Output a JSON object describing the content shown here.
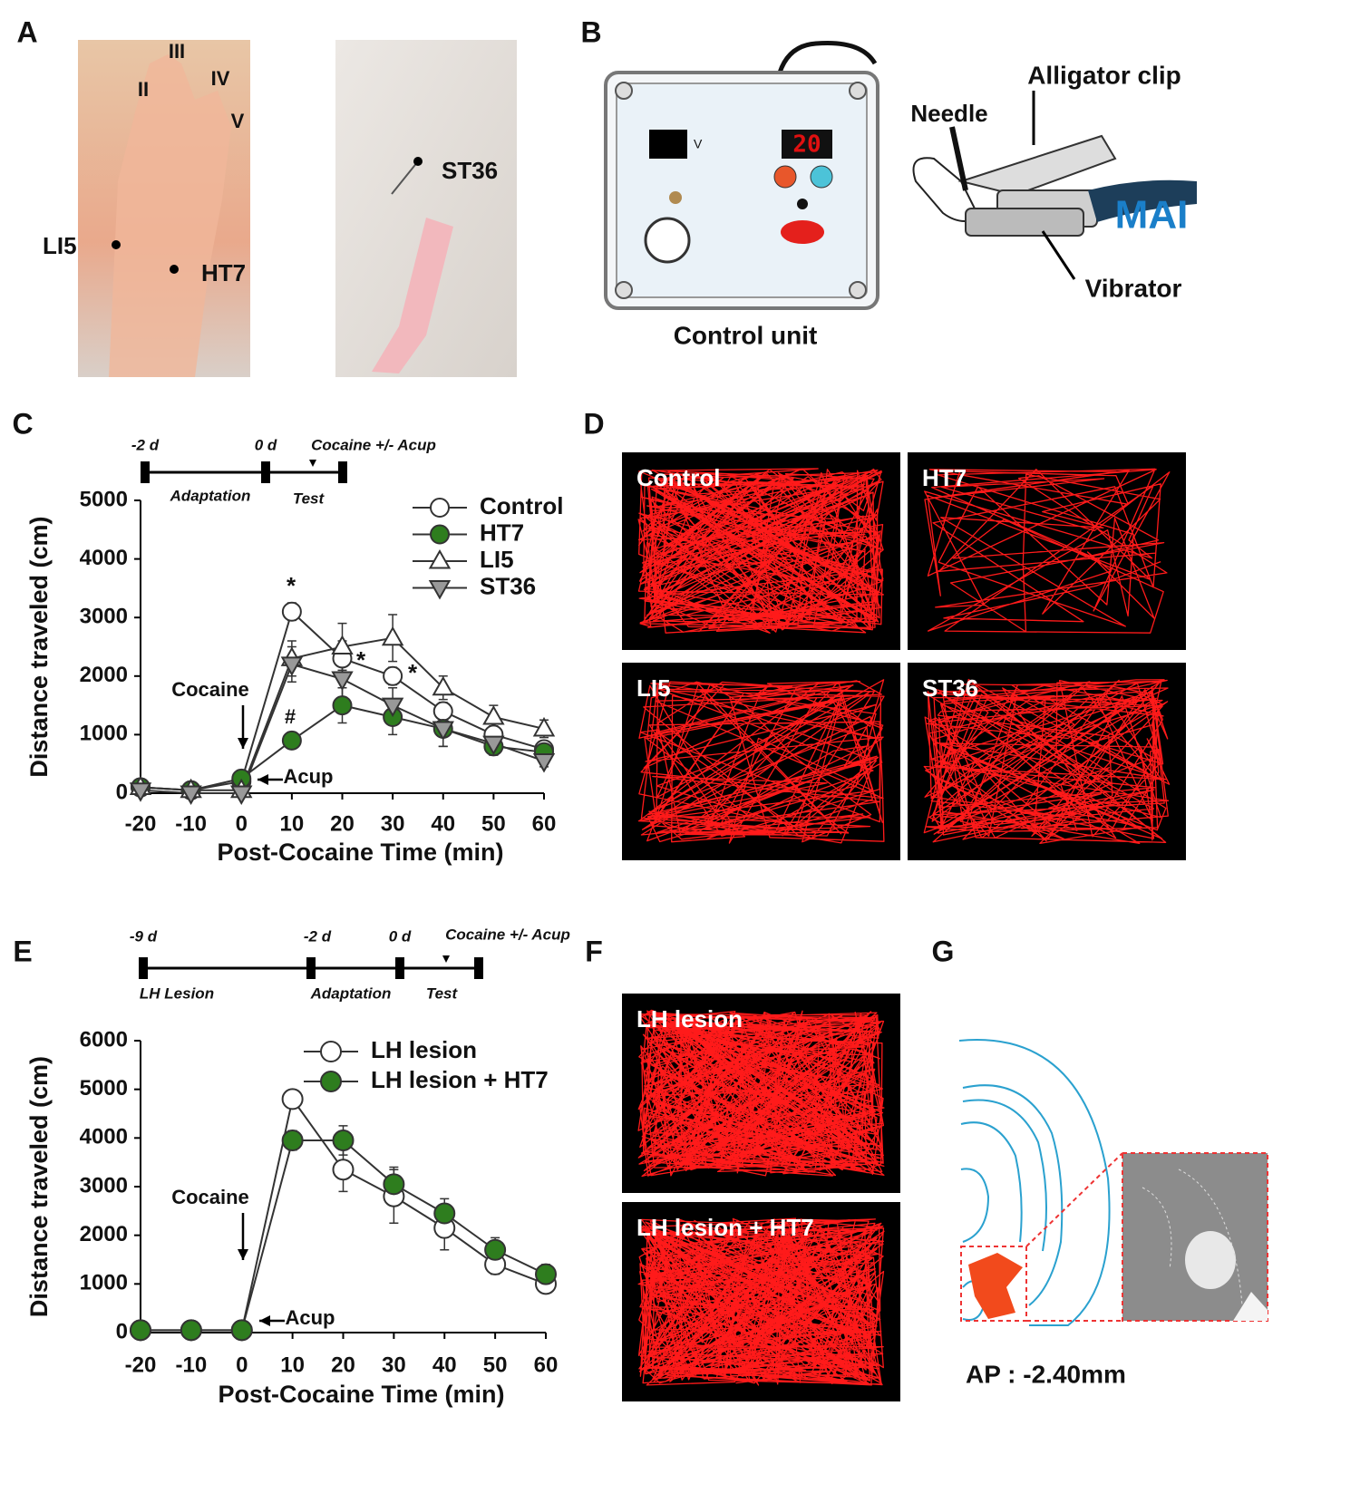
{
  "panel_labels": [
    "A",
    "B",
    "C",
    "D",
    "E",
    "F",
    "G"
  ],
  "panel_a": {
    "digit_labels": [
      "II",
      "III",
      "IV",
      "V"
    ],
    "points": [
      "LI5",
      "HT7",
      "ST36"
    ]
  },
  "panel_b": {
    "display_value": "20",
    "unit": "V",
    "labels": {
      "needle": "Needle",
      "clip": "Alligator clip",
      "device": "MAI",
      "vibrator": "Vibrator",
      "control_unit": "Control unit"
    }
  },
  "panel_d": {
    "tracks": [
      "Control",
      "HT7",
      "LI5",
      "ST36"
    ]
  },
  "panel_f": {
    "tracks": [
      "LH lesion",
      "LH lesion + HT7"
    ]
  },
  "panel_g": {
    "caption": "AP : -2.40mm"
  },
  "chart_data": [
    {
      "type": "line",
      "timeline": {
        "day_labels": [
          "-2 d",
          "0 d"
        ],
        "event_label": "Cocaine +/- Acup",
        "phase_labels": [
          "Adaptation",
          "Test"
        ]
      },
      "x": [
        -20,
        -10,
        0,
        10,
        20,
        30,
        40,
        50,
        60
      ],
      "xlim": [
        -20,
        60
      ],
      "xticks": [
        -20,
        -10,
        0,
        10,
        20,
        30,
        40,
        50,
        60
      ],
      "ylim": [
        0,
        5000
      ],
      "yticks": [
        0,
        1000,
        2000,
        3000,
        4000,
        5000
      ],
      "xlabel": "Post-Cocaine Time (min)",
      "ylabel": "Distance traveled (cm)",
      "annotations": [
        "*",
        "*",
        "*",
        "#",
        "Cocaine",
        "Acup"
      ],
      "series": [
        {
          "name": "Control",
          "marker": "circle",
          "color": "#ffffff",
          "values": [
            100,
            50,
            200,
            3100,
            2300,
            2000,
            1400,
            1000,
            750
          ],
          "errors": [
            50,
            50,
            50,
            150,
            300,
            150,
            150,
            150,
            100
          ]
        },
        {
          "name": "HT7",
          "marker": "circle",
          "color": "#2e7d1e",
          "values": [
            100,
            50,
            250,
            900,
            1500,
            1300,
            1100,
            800,
            700
          ],
          "errors": [
            50,
            50,
            50,
            100,
            300,
            300,
            300,
            150,
            150
          ]
        },
        {
          "name": "LI5",
          "marker": "triangle-up",
          "color": "#ffffff",
          "values": [
            100,
            50,
            50,
            2300,
            2500,
            2650,
            1800,
            1300,
            1100
          ],
          "errors": [
            50,
            50,
            50,
            300,
            400,
            400,
            200,
            200,
            150
          ]
        },
        {
          "name": "ST36",
          "marker": "triangle-down",
          "color": "#999999",
          "values": [
            50,
            0,
            0,
            2200,
            1950,
            1500,
            1100,
            850,
            550
          ],
          "errors": [
            50,
            30,
            30,
            300,
            350,
            300,
            300,
            200,
            100
          ]
        }
      ]
    },
    {
      "type": "line",
      "timeline": {
        "day_labels": [
          "-9 d",
          "-2 d",
          "0 d"
        ],
        "event_label": "Cocaine +/- Acup",
        "phase_labels": [
          "LH Lesion",
          "Adaptation",
          "Test"
        ]
      },
      "x": [
        -20,
        -10,
        0,
        10,
        20,
        30,
        40,
        50,
        60
      ],
      "xlim": [
        -20,
        60
      ],
      "xticks": [
        -20,
        -10,
        0,
        10,
        20,
        30,
        40,
        50,
        60
      ],
      "ylim": [
        0,
        6000
      ],
      "yticks": [
        0,
        1000,
        2000,
        3000,
        4000,
        5000,
        6000
      ],
      "xlabel": "Post-Cocaine Time (min)",
      "ylabel": "Distance traveled (cm)",
      "annotations": [
        "Cocaine",
        "Acup"
      ],
      "series": [
        {
          "name": "LH lesion",
          "marker": "circle",
          "color": "#ffffff",
          "values": [
            50,
            50,
            50,
            4800,
            3350,
            2800,
            2150,
            1400,
            1000
          ],
          "errors": [
            50,
            50,
            50,
            100,
            450,
            550,
            450,
            200,
            100
          ]
        },
        {
          "name": "LH lesion + HT7",
          "marker": "circle",
          "color": "#2e7d1e",
          "values": [
            50,
            50,
            50,
            3950,
            3950,
            3050,
            2450,
            1700,
            1200
          ],
          "errors": [
            50,
            50,
            50,
            200,
            300,
            350,
            300,
            250,
            200
          ]
        }
      ]
    }
  ]
}
